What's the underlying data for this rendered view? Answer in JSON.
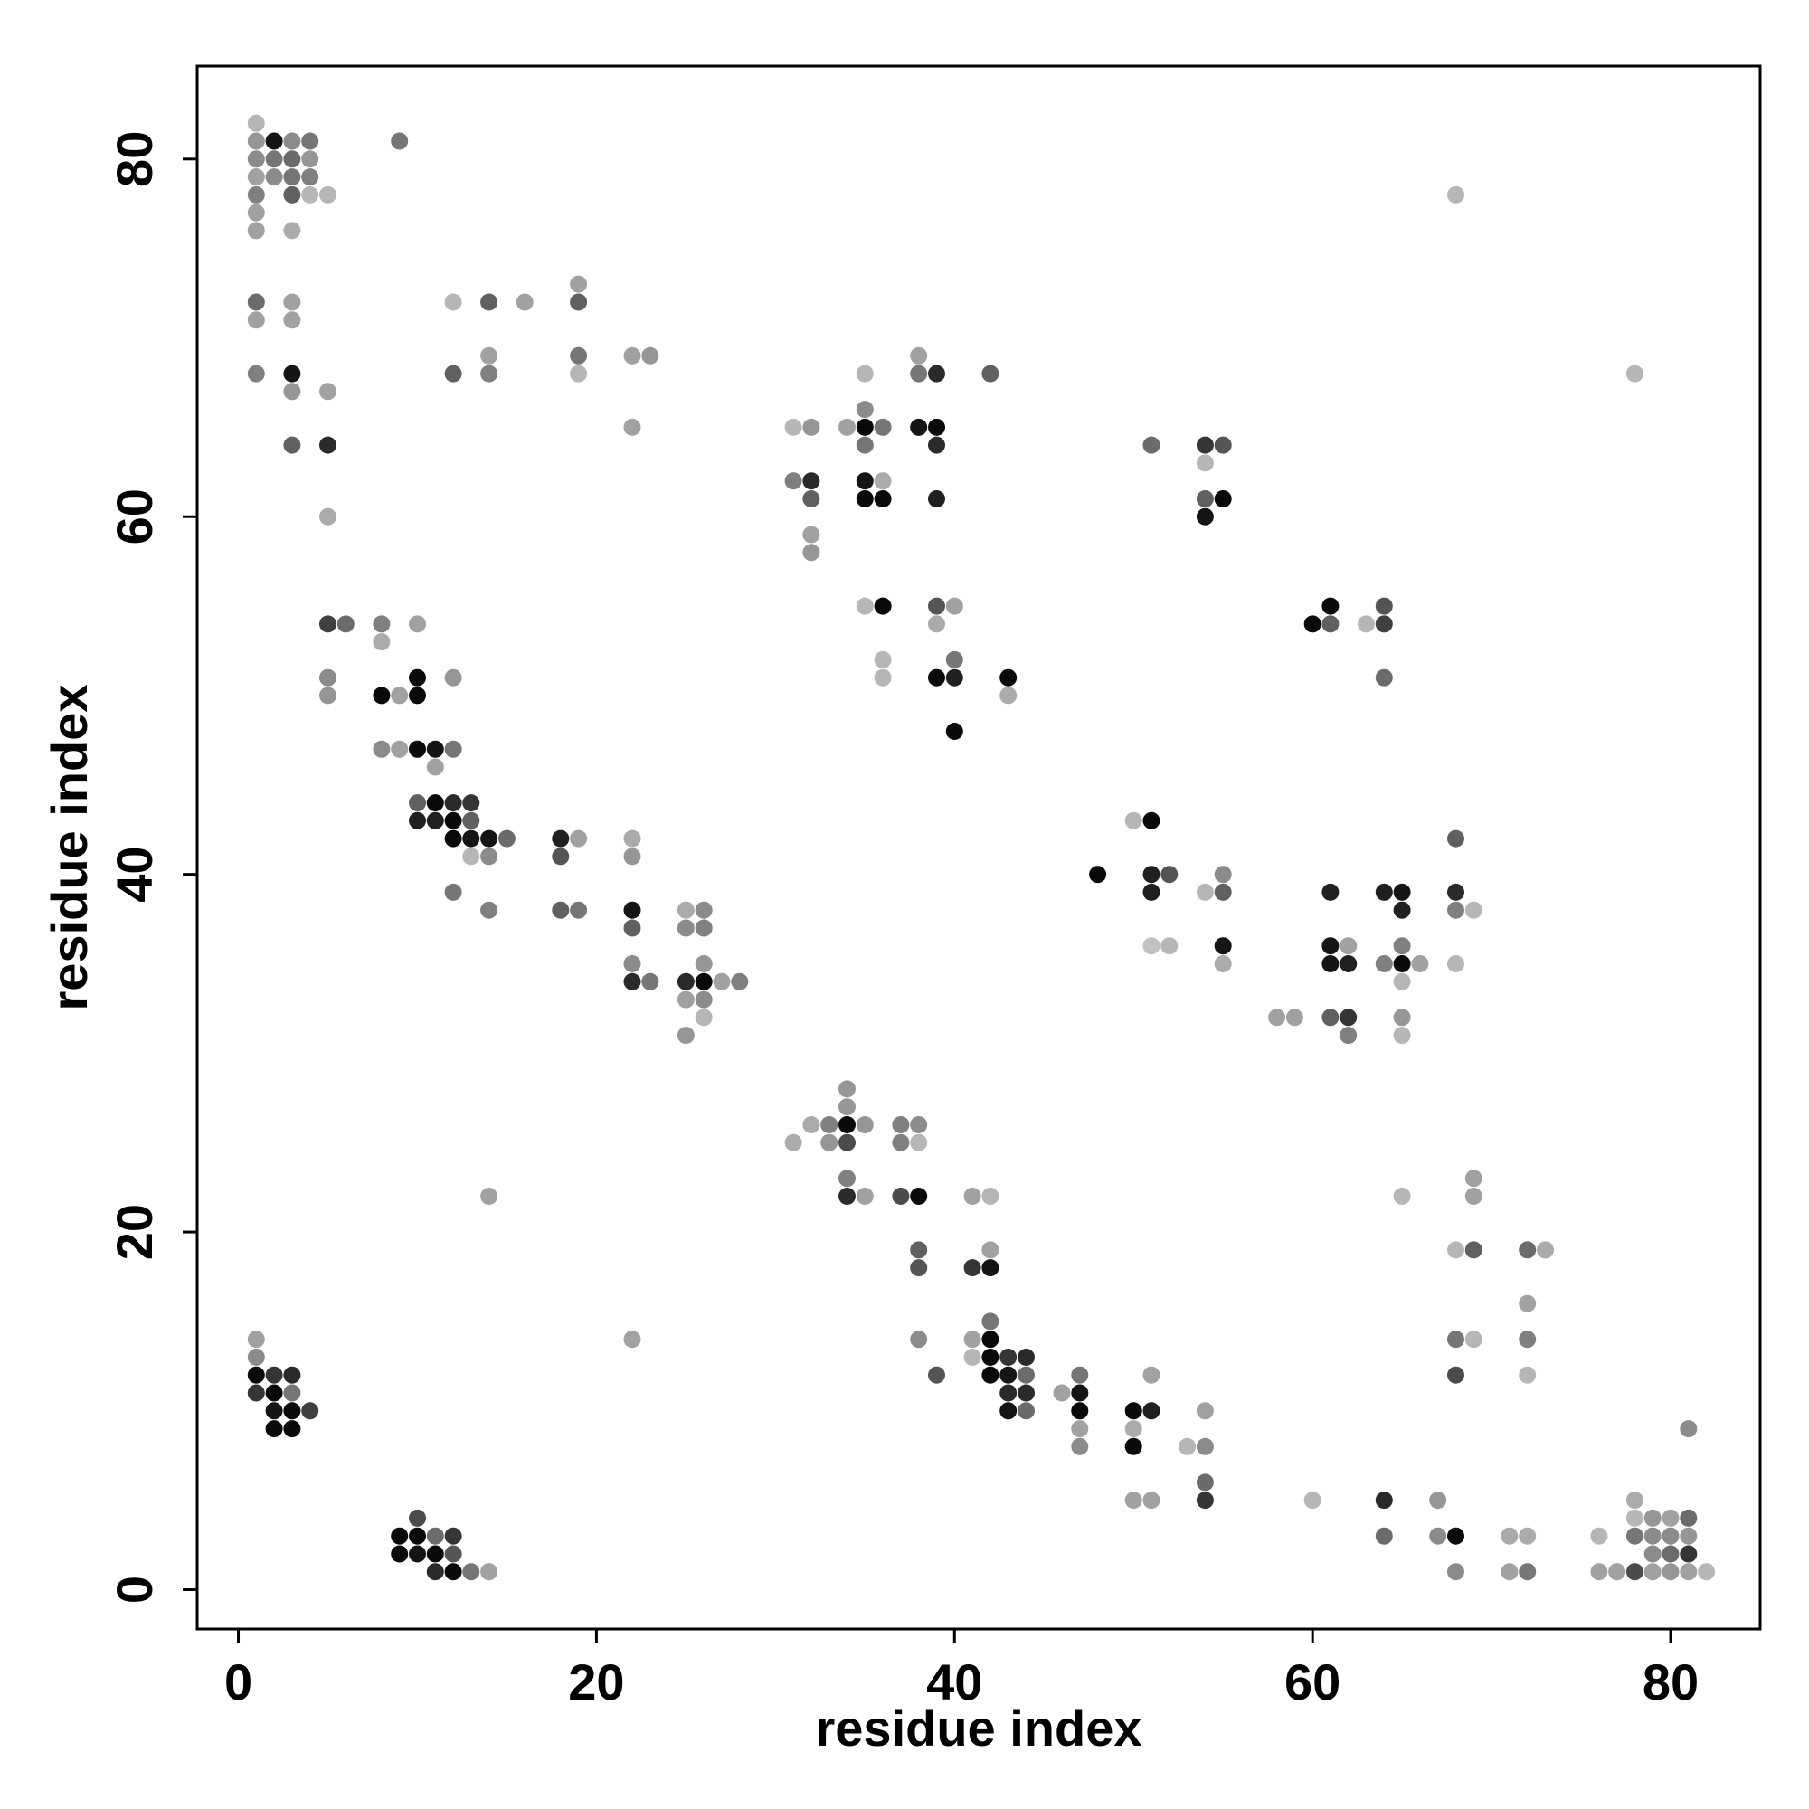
{
  "chart_data": {
    "type": "scatter",
    "title": "",
    "xlabel": "residue index",
    "ylabel": "residue index",
    "xlim": [
      -2.3,
      85
    ],
    "ylim": [
      -2.2,
      85.2
    ],
    "xticks": [
      0,
      20,
      40,
      60,
      80
    ],
    "yticks": [
      0,
      20,
      40,
      60,
      80
    ],
    "grid": false,
    "legend": "none",
    "color_scale": "gray levels: 1 = black, 0 = light gray",
    "points": [
      [
        1,
        82,
        0.2
      ],
      [
        1,
        81,
        0.35
      ],
      [
        1,
        80,
        0.4
      ],
      [
        1,
        79,
        0.3
      ],
      [
        1,
        78,
        0.45
      ],
      [
        1,
        77,
        0.3
      ],
      [
        1,
        76,
        0.3
      ],
      [
        2,
        81,
        0.95
      ],
      [
        2,
        80,
        0.5
      ],
      [
        2,
        79,
        0.4
      ],
      [
        3,
        81,
        0.4
      ],
      [
        3,
        80,
        0.55
      ],
      [
        3,
        79,
        0.5
      ],
      [
        3,
        78,
        0.6
      ],
      [
        3,
        76,
        0.25
      ],
      [
        4,
        81,
        0.5
      ],
      [
        4,
        80,
        0.35
      ],
      [
        4,
        79,
        0.45
      ],
      [
        4,
        78,
        0.2
      ],
      [
        5,
        78,
        0.2
      ],
      [
        9,
        81,
        0.5
      ],
      [
        68,
        78,
        0.2
      ],
      [
        1,
        72,
        0.55
      ],
      [
        1,
        71,
        0.3
      ],
      [
        1,
        68,
        0.45
      ],
      [
        3,
        72,
        0.3
      ],
      [
        3,
        71,
        0.3
      ],
      [
        3,
        68,
        0.95
      ],
      [
        3,
        67,
        0.35
      ],
      [
        3,
        64,
        0.6
      ],
      [
        5,
        67,
        0.3
      ],
      [
        5,
        64,
        0.85
      ],
      [
        5,
        60,
        0.25
      ],
      [
        12,
        72,
        0.2
      ],
      [
        12,
        68,
        0.6
      ],
      [
        14,
        72,
        0.6
      ],
      [
        14,
        69,
        0.3
      ],
      [
        14,
        68,
        0.45
      ],
      [
        16,
        72,
        0.3
      ],
      [
        19,
        73,
        0.3
      ],
      [
        19,
        72,
        0.6
      ],
      [
        19,
        69,
        0.5
      ],
      [
        19,
        68,
        0.2
      ],
      [
        22,
        69,
        0.3
      ],
      [
        23,
        69,
        0.35
      ],
      [
        22,
        65,
        0.3
      ],
      [
        78,
        68,
        0.2
      ],
      [
        31,
        65,
        0.2
      ],
      [
        32,
        65,
        0.35
      ],
      [
        31,
        62,
        0.45
      ],
      [
        32,
        62,
        0.85
      ],
      [
        32,
        61,
        0.6
      ],
      [
        32,
        59,
        0.3
      ],
      [
        32,
        58,
        0.35
      ],
      [
        34,
        65,
        0.3
      ],
      [
        35,
        68,
        0.2
      ],
      [
        35,
        66,
        0.4
      ],
      [
        35,
        65,
        1.0
      ],
      [
        35,
        64,
        0.5
      ],
      [
        36,
        65,
        0.5
      ],
      [
        35,
        62,
        0.95
      ],
      [
        36,
        62,
        0.25
      ],
      [
        35,
        61,
        1.0
      ],
      [
        36,
        61,
        1.0
      ],
      [
        38,
        69,
        0.3
      ],
      [
        38,
        68,
        0.5
      ],
      [
        39,
        68,
        0.85
      ],
      [
        42,
        68,
        0.6
      ],
      [
        38,
        65,
        0.95
      ],
      [
        39,
        65,
        1.0
      ],
      [
        39,
        64,
        0.85
      ],
      [
        39,
        61,
        0.9
      ],
      [
        51,
        64,
        0.55
      ],
      [
        54,
        64,
        0.8
      ],
      [
        55,
        64,
        0.65
      ],
      [
        54,
        63,
        0.2
      ],
      [
        54,
        61,
        0.6
      ],
      [
        55,
        61,
        1.0
      ],
      [
        54,
        60,
        0.95
      ],
      [
        5,
        54,
        0.75
      ],
      [
        6,
        54,
        0.55
      ],
      [
        5,
        51,
        0.4
      ],
      [
        5,
        50,
        0.35
      ],
      [
        8,
        54,
        0.45
      ],
      [
        8,
        53,
        0.25
      ],
      [
        10,
        54,
        0.3
      ],
      [
        8,
        50,
        1.0
      ],
      [
        9,
        50,
        0.3
      ],
      [
        10,
        51,
        1.0
      ],
      [
        10,
        50,
        1.0
      ],
      [
        12,
        51,
        0.35
      ],
      [
        35,
        55,
        0.2
      ],
      [
        36,
        55,
        1.0
      ],
      [
        36,
        52,
        0.2
      ],
      [
        36,
        51,
        0.2
      ],
      [
        39,
        55,
        0.65
      ],
      [
        40,
        55,
        0.3
      ],
      [
        39,
        54,
        0.25
      ],
      [
        40,
        52,
        0.5
      ],
      [
        39,
        51,
        1.0
      ],
      [
        40,
        51,
        0.9
      ],
      [
        43,
        51,
        1.0
      ],
      [
        43,
        50,
        0.25
      ],
      [
        40,
        48,
        1.0
      ],
      [
        60,
        54,
        1.0
      ],
      [
        61,
        55,
        1.0
      ],
      [
        61,
        54,
        0.6
      ],
      [
        63,
        54,
        0.2
      ],
      [
        64,
        55,
        0.65
      ],
      [
        64,
        54,
        0.75
      ],
      [
        64,
        51,
        0.55
      ],
      [
        8,
        47,
        0.4
      ],
      [
        9,
        47,
        0.3
      ],
      [
        10,
        47,
        1.0
      ],
      [
        11,
        47,
        0.95
      ],
      [
        12,
        47,
        0.5
      ],
      [
        11,
        46,
        0.3
      ],
      [
        10,
        44,
        0.6
      ],
      [
        11,
        44,
        1.0
      ],
      [
        12,
        44,
        0.85
      ],
      [
        13,
        44,
        0.8
      ],
      [
        10,
        43,
        0.9
      ],
      [
        11,
        43,
        0.9
      ],
      [
        12,
        43,
        1.0
      ],
      [
        13,
        43,
        0.6
      ],
      [
        12,
        42,
        1.0
      ],
      [
        13,
        42,
        0.95
      ],
      [
        14,
        42,
        0.95
      ],
      [
        15,
        42,
        0.55
      ],
      [
        13,
        41,
        0.2
      ],
      [
        14,
        41,
        0.4
      ],
      [
        12,
        39,
        0.5
      ],
      [
        14,
        38,
        0.45
      ],
      [
        18,
        42,
        0.9
      ],
      [
        19,
        42,
        0.3
      ],
      [
        18,
        41,
        0.65
      ],
      [
        18,
        38,
        0.6
      ],
      [
        19,
        38,
        0.5
      ],
      [
        22,
        42,
        0.25
      ],
      [
        22,
        41,
        0.35
      ],
      [
        22,
        38,
        0.95
      ],
      [
        22,
        37,
        0.6
      ],
      [
        22,
        35,
        0.4
      ],
      [
        22,
        34,
        0.85
      ],
      [
        23,
        34,
        0.5
      ],
      [
        25,
        38,
        0.25
      ],
      [
        26,
        38,
        0.4
      ],
      [
        25,
        37,
        0.4
      ],
      [
        26,
        37,
        0.45
      ],
      [
        26,
        35,
        0.35
      ],
      [
        25,
        34,
        0.85
      ],
      [
        26,
        34,
        1.0
      ],
      [
        27,
        34,
        0.3
      ],
      [
        28,
        34,
        0.45
      ],
      [
        25,
        33,
        0.3
      ],
      [
        26,
        33,
        0.4
      ],
      [
        26,
        32,
        0.2
      ],
      [
        25,
        31,
        0.35
      ],
      [
        50,
        43,
        0.2
      ],
      [
        51,
        43,
        1.0
      ],
      [
        48,
        40,
        1.0
      ],
      [
        51,
        40,
        0.9
      ],
      [
        52,
        40,
        0.65
      ],
      [
        51,
        39,
        0.9
      ],
      [
        54,
        39,
        0.2
      ],
      [
        55,
        40,
        0.4
      ],
      [
        55,
        39,
        0.6
      ],
      [
        51,
        36,
        0.15
      ],
      [
        52,
        36,
        0.2
      ],
      [
        55,
        36,
        0.95
      ],
      [
        55,
        35,
        0.25
      ],
      [
        58,
        32,
        0.3
      ],
      [
        59,
        32,
        0.3
      ],
      [
        61,
        39,
        0.9
      ],
      [
        61,
        36,
        0.95
      ],
      [
        62,
        36,
        0.3
      ],
      [
        61,
        35,
        0.95
      ],
      [
        62,
        35,
        0.9
      ],
      [
        61,
        32,
        0.6
      ],
      [
        62,
        32,
        0.8
      ],
      [
        62,
        31,
        0.45
      ],
      [
        64,
        39,
        0.9
      ],
      [
        65,
        39,
        0.95
      ],
      [
        65,
        38,
        0.9
      ],
      [
        64,
        35,
        0.45
      ],
      [
        65,
        36,
        0.45
      ],
      [
        65,
        35,
        1.0
      ],
      [
        66,
        35,
        0.3
      ],
      [
        65,
        34,
        0.2
      ],
      [
        65,
        32,
        0.35
      ],
      [
        65,
        31,
        0.2
      ],
      [
        68,
        42,
        0.6
      ],
      [
        68,
        39,
        0.85
      ],
      [
        68,
        38,
        0.45
      ],
      [
        69,
        38,
        0.2
      ],
      [
        68,
        35,
        0.2
      ],
      [
        34,
        28,
        0.35
      ],
      [
        34,
        27,
        0.35
      ],
      [
        32,
        26,
        0.25
      ],
      [
        33,
        26,
        0.45
      ],
      [
        34,
        26,
        1.0
      ],
      [
        35,
        26,
        0.35
      ],
      [
        31,
        25,
        0.25
      ],
      [
        33,
        25,
        0.35
      ],
      [
        34,
        25,
        0.7
      ],
      [
        37,
        26,
        0.45
      ],
      [
        38,
        26,
        0.4
      ],
      [
        37,
        25,
        0.45
      ],
      [
        38,
        25,
        0.2
      ],
      [
        34,
        23,
        0.45
      ],
      [
        34,
        22,
        0.85
      ],
      [
        35,
        22,
        0.3
      ],
      [
        37,
        22,
        0.7
      ],
      [
        38,
        22,
        1.0
      ],
      [
        14,
        22,
        0.3
      ],
      [
        41,
        22,
        0.3
      ],
      [
        42,
        22,
        0.2
      ],
      [
        65,
        22,
        0.2
      ],
      [
        38,
        19,
        0.6
      ],
      [
        38,
        18,
        0.65
      ],
      [
        41,
        18,
        0.8
      ],
      [
        42,
        18,
        0.95
      ],
      [
        42,
        19,
        0.3
      ],
      [
        38,
        14,
        0.4
      ],
      [
        39,
        12,
        0.65
      ],
      [
        41,
        14,
        0.3
      ],
      [
        41,
        13,
        0.2
      ],
      [
        42,
        15,
        0.5
      ],
      [
        42,
        14,
        1.0
      ],
      [
        42,
        13,
        1.0
      ],
      [
        42,
        12,
        1.0
      ],
      [
        43,
        13,
        0.8
      ],
      [
        43,
        12,
        0.95
      ],
      [
        43,
        11,
        0.85
      ],
      [
        43,
        10,
        0.95
      ],
      [
        44,
        13,
        0.85
      ],
      [
        44,
        12,
        0.55
      ],
      [
        44,
        11,
        0.85
      ],
      [
        44,
        10,
        0.55
      ],
      [
        46,
        11,
        0.3
      ],
      [
        47,
        12,
        0.5
      ],
      [
        47,
        11,
        0.95
      ],
      [
        47,
        10,
        1.0
      ],
      [
        47,
        9,
        0.3
      ],
      [
        47,
        8,
        0.4
      ],
      [
        50,
        10,
        1.0
      ],
      [
        51,
        10,
        0.9
      ],
      [
        51,
        12,
        0.3
      ],
      [
        50,
        9,
        0.25
      ],
      [
        50,
        8,
        1.0
      ],
      [
        53,
        8,
        0.2
      ],
      [
        54,
        10,
        0.3
      ],
      [
        54,
        8,
        0.4
      ],
      [
        54,
        6,
        0.55
      ],
      [
        54,
        5,
        0.8
      ],
      [
        50,
        5,
        0.3
      ],
      [
        51,
        5,
        0.3
      ],
      [
        22,
        14,
        0.3
      ],
      [
        60,
        5,
        0.2
      ],
      [
        64,
        5,
        0.85
      ],
      [
        64,
        3,
        0.55
      ],
      [
        67,
        5,
        0.35
      ],
      [
        67,
        3,
        0.4
      ],
      [
        68,
        3,
        1.0
      ],
      [
        68,
        1,
        0.4
      ],
      [
        68,
        19,
        0.2
      ],
      [
        69,
        19,
        0.6
      ],
      [
        69,
        23,
        0.3
      ],
      [
        69,
        22,
        0.3
      ],
      [
        68,
        14,
        0.5
      ],
      [
        69,
        14,
        0.2
      ],
      [
        68,
        12,
        0.7
      ],
      [
        72,
        19,
        0.55
      ],
      [
        73,
        19,
        0.25
      ],
      [
        72,
        16,
        0.3
      ],
      [
        72,
        14,
        0.45
      ],
      [
        72,
        12,
        0.2
      ],
      [
        71,
        3,
        0.25
      ],
      [
        72,
        3,
        0.25
      ],
      [
        71,
        1,
        0.3
      ],
      [
        72,
        1,
        0.5
      ],
      [
        76,
        3,
        0.2
      ],
      [
        76,
        1,
        0.3
      ],
      [
        77,
        1,
        0.3
      ],
      [
        78,
        5,
        0.25
      ],
      [
        78,
        4,
        0.2
      ],
      [
        78,
        3,
        0.5
      ],
      [
        78,
        1,
        0.7
      ],
      [
        79,
        4,
        0.35
      ],
      [
        79,
        3,
        0.4
      ],
      [
        79,
        2,
        0.4
      ],
      [
        79,
        1,
        0.3
      ],
      [
        80,
        4,
        0.3
      ],
      [
        80,
        3,
        0.4
      ],
      [
        80,
        2,
        0.55
      ],
      [
        80,
        1,
        0.35
      ],
      [
        81,
        9,
        0.4
      ],
      [
        81,
        4,
        0.55
      ],
      [
        81,
        3,
        0.35
      ],
      [
        81,
        2,
        0.8
      ],
      [
        81,
        1,
        0.3
      ],
      [
        82,
        1,
        0.2
      ],
      [
        1,
        14,
        0.3
      ],
      [
        1,
        13,
        0.4
      ],
      [
        1,
        12,
        1.0
      ],
      [
        1,
        11,
        0.8
      ],
      [
        2,
        12,
        0.8
      ],
      [
        2,
        11,
        1.0
      ],
      [
        2,
        10,
        0.95
      ],
      [
        2,
        9,
        1.0
      ],
      [
        3,
        12,
        0.85
      ],
      [
        3,
        11,
        0.5
      ],
      [
        3,
        10,
        1.0
      ],
      [
        3,
        9,
        1.0
      ],
      [
        4,
        10,
        0.75
      ],
      [
        9,
        3,
        1.0
      ],
      [
        9,
        2,
        1.0
      ],
      [
        10,
        4,
        0.7
      ],
      [
        10,
        3,
        1.0
      ],
      [
        10,
        2,
        0.95
      ],
      [
        11,
        3,
        0.55
      ],
      [
        11,
        2,
        1.0
      ],
      [
        11,
        1,
        0.85
      ],
      [
        12,
        3,
        0.8
      ],
      [
        12,
        2,
        0.65
      ],
      [
        12,
        1,
        1.0
      ],
      [
        13,
        1,
        0.5
      ],
      [
        14,
        1,
        0.3
      ]
    ]
  }
}
